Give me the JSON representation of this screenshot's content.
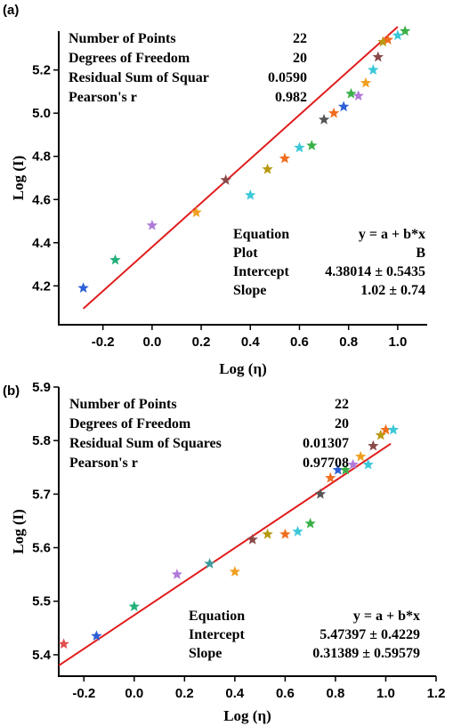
{
  "chart_data": [
    {
      "type": "scatter",
      "panel_label": "(a)",
      "xlabel": "Log (η)",
      "ylabel": "Log (I)",
      "xlim": [
        -0.38,
        1.12
      ],
      "ylim": [
        4.02,
        5.38
      ],
      "xticks": [
        "-0.2",
        "0.0",
        "0.2",
        "0.4",
        "0.6",
        "0.8",
        "1.0"
      ],
      "yticks": [
        "4.2",
        "4.4",
        "4.6",
        "4.8",
        "5.0",
        "5.2"
      ],
      "points": {
        "x": [
          -0.28,
          -0.15,
          0.0,
          0.18,
          0.3,
          0.4,
          0.47,
          0.54,
          0.6,
          0.65,
          0.7,
          0.74,
          0.78,
          0.81,
          0.84,
          0.87,
          0.9,
          0.92,
          0.94,
          0.96,
          1.0,
          1.03
        ],
        "y": [
          4.19,
          4.32,
          4.48,
          4.54,
          4.69,
          4.62,
          4.74,
          4.79,
          4.84,
          4.85,
          4.97,
          5.0,
          5.03,
          5.09,
          5.08,
          5.14,
          5.2,
          5.26,
          5.33,
          5.34,
          5.36,
          5.38
        ],
        "colors": [
          "#2d5fd6",
          "#22b07a",
          "#b07ad8",
          "#f0a020",
          "#8a4a4a",
          "#3cc8d8",
          "#b89a10",
          "#f06e1e",
          "#3cc8d8",
          "#3ab048",
          "#555555",
          "#f06e1e",
          "#2d5fd6",
          "#3ab048",
          "#b07ad8",
          "#f0a020",
          "#3cc8d8",
          "#8a4a4a",
          "#b89a10",
          "#f06e1e",
          "#3cc8d8",
          "#3ab048"
        ]
      },
      "fit": {
        "intercept": 4.38014,
        "slope": 1.02,
        "x_range": [
          -0.28,
          1.0
        ]
      },
      "stats_table": [
        {
          "label": "Number of Points",
          "value": "22"
        },
        {
          "label": "Degrees of Freedom",
          "value": "20"
        },
        {
          "label": "Residual Sum of Squar",
          "value": "0.0590"
        },
        {
          "label": "Pearson's r",
          "value": "0.982"
        }
      ],
      "fit_table": [
        {
          "label": "Equation",
          "value": "y = a + b*x"
        },
        {
          "label": "Plot",
          "value": "B"
        },
        {
          "label": "Intercept",
          "value": "4.38014 ± 0.5435"
        },
        {
          "label": "Slope",
          "value": "1.02 ± 0.74"
        }
      ]
    },
    {
      "type": "scatter",
      "panel_label": "(b)",
      "xlabel": "Log (η)",
      "ylabel": "Log (I)",
      "xlim": [
        -0.3,
        1.2
      ],
      "ylim": [
        5.36,
        5.9
      ],
      "xticks": [
        "-0.2",
        "0.0",
        "0.2",
        "0.4",
        "0.6",
        "0.8",
        "1.0",
        "1.2"
      ],
      "yticks": [
        "5.4",
        "5.5",
        "5.6",
        "5.7",
        "5.8",
        "5.9"
      ],
      "points": {
        "x": [
          -0.28,
          -0.15,
          0.0,
          0.17,
          0.3,
          0.4,
          0.47,
          0.53,
          0.6,
          0.65,
          0.7,
          0.74,
          0.78,
          0.81,
          0.84,
          0.87,
          0.9,
          0.93,
          0.95,
          0.98,
          1.0,
          1.03
        ],
        "y": [
          5.42,
          5.435,
          5.49,
          5.55,
          5.57,
          5.555,
          5.615,
          5.625,
          5.625,
          5.63,
          5.645,
          5.7,
          5.73,
          5.745,
          5.745,
          5.755,
          5.77,
          5.755,
          5.79,
          5.81,
          5.82,
          5.82
        ],
        "colors": [
          "#e05050",
          "#2d5fd6",
          "#22b07a",
          "#b07ad8",
          "#3a9a9a",
          "#f0a020",
          "#8a4a4a",
          "#b89a10",
          "#f06e1e",
          "#3cc8d8",
          "#3ab048",
          "#555555",
          "#f06e1e",
          "#2d5fd6",
          "#3ab048",
          "#b07ad8",
          "#f0a020",
          "#3cc8d8",
          "#8a4a4a",
          "#b89a10",
          "#f06e1e",
          "#3cc8d8"
        ]
      },
      "fit": {
        "intercept": 5.47397,
        "slope": 0.31389,
        "x_range": [
          -0.3,
          1.02
        ]
      },
      "stats_table": [
        {
          "label": "Number of Points",
          "value": "22"
        },
        {
          "label": "Degrees of Freedom",
          "value": "20"
        },
        {
          "label": "Residual Sum of Squares",
          "value": "0.01307"
        },
        {
          "label": "Pearson's r",
          "value": "0.97708"
        }
      ],
      "fit_table": [
        {
          "label": "Equation",
          "value": "y = a + b*x"
        },
        {
          "label": "Intercept",
          "value": "5.47397 ± 0.4229"
        },
        {
          "label": "Slope",
          "value": "0.31389 ± 0.59579"
        }
      ]
    }
  ]
}
